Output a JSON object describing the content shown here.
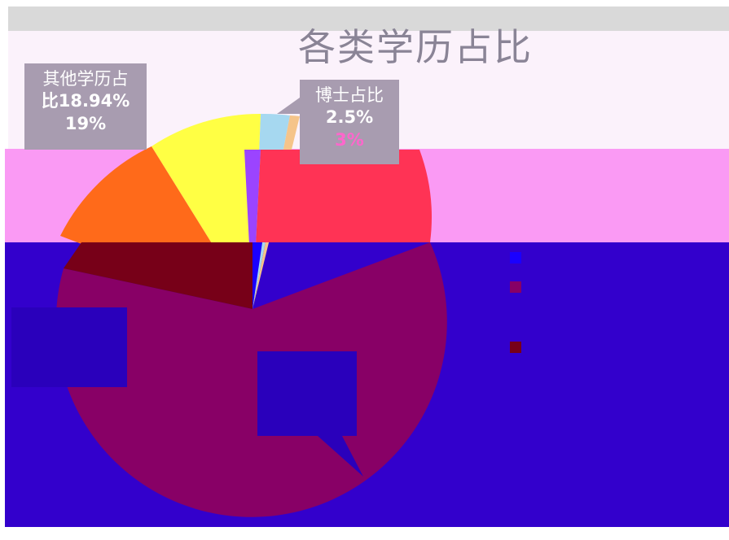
{
  "chart_data": {
    "type": "pie",
    "title": "各类学历占比",
    "slices": [
      {
        "label": "博士占比",
        "percent_text": "2.5%",
        "rounded": "3%",
        "value": 2.5,
        "color": "#a6d8f0"
      },
      {
        "label": "其他学历占比",
        "percent_text": "18.94%",
        "rounded": "19%",
        "value": 18.94,
        "color": "#ff7a1a"
      }
    ],
    "callouts": {
      "doctor": {
        "line1": "博士占比",
        "line2": "2.5%",
        "line3": "3%"
      },
      "other": {
        "line1": "其他学历占",
        "line2": "比18.94%",
        "line3": "19%"
      }
    }
  }
}
